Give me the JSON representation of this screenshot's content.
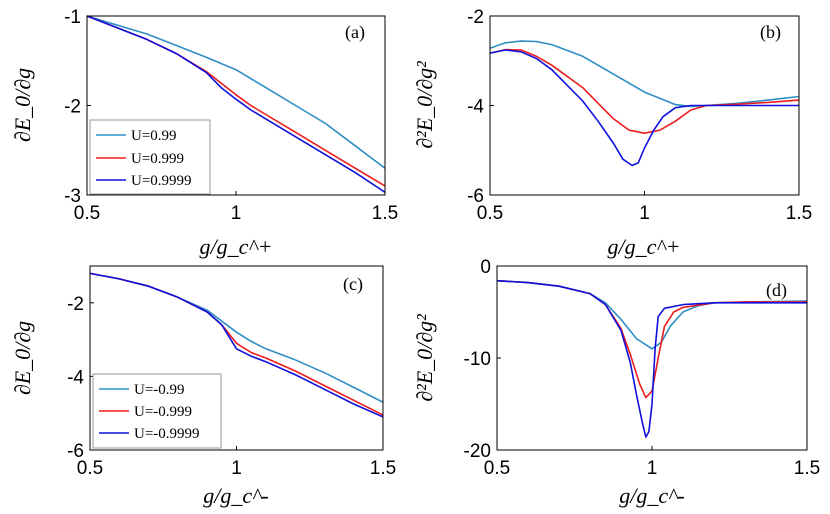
{
  "figure": {
    "colors": [
      "#2f8fc5",
      "#ee1c1c",
      "#1010dd"
    ],
    "x_labels": [
      "g/g_c^+",
      "g/g_c^+",
      "g/g_c^-",
      "g/g_c^-"
    ]
  },
  "chart_data": [
    {
      "type": "line",
      "panel_label": "(a)",
      "xlabel": "g/g_c^+",
      "ylabel": "∂E_0/∂g",
      "xlim": [
        0.5,
        1.5
      ],
      "ylim": [
        -3,
        -1
      ],
      "xticks": [
        0.5,
        1,
        1.5
      ],
      "yticks": [
        -3,
        -2,
        -1
      ],
      "xtick_labels": [
        "0.5",
        "1",
        "1.5"
      ],
      "ytick_labels": [
        "-3",
        "-2",
        "-1"
      ],
      "legend": {
        "position": "bottom-left",
        "entries": [
          "U=0.99",
          "U=0.999",
          "U=0.9999"
        ]
      },
      "series": [
        {
          "name": "U=0.99",
          "x": [
            0.5,
            0.6,
            0.7,
            0.8,
            0.9,
            1.0,
            1.1,
            1.2,
            1.3,
            1.4,
            1.5
          ],
          "y": [
            -1.0,
            -1.1,
            -1.2,
            -1.33,
            -1.46,
            -1.6,
            -1.8,
            -2.0,
            -2.2,
            -2.45,
            -2.7
          ]
        },
        {
          "name": "U=0.999",
          "x": [
            0.5,
            0.6,
            0.7,
            0.8,
            0.9,
            0.95,
            1.0,
            1.05,
            1.1,
            1.2,
            1.3,
            1.4,
            1.5
          ],
          "y": [
            -1.0,
            -1.13,
            -1.26,
            -1.42,
            -1.62,
            -1.75,
            -1.88,
            -2.0,
            -2.1,
            -2.3,
            -2.5,
            -2.7,
            -2.9
          ]
        },
        {
          "name": "U=0.9999",
          "x": [
            0.5,
            0.6,
            0.7,
            0.8,
            0.9,
            0.95,
            1.0,
            1.05,
            1.1,
            1.2,
            1.3,
            1.4,
            1.5
          ],
          "y": [
            -1.0,
            -1.13,
            -1.26,
            -1.42,
            -1.63,
            -1.8,
            -1.93,
            -2.05,
            -2.15,
            -2.35,
            -2.55,
            -2.75,
            -2.97
          ]
        }
      ]
    },
    {
      "type": "line",
      "panel_label": "(b)",
      "xlabel": "g/g_c^+",
      "ylabel": "∂²E_0/∂g²",
      "xlim": [
        0.5,
        1.5
      ],
      "ylim": [
        -6,
        -2
      ],
      "xticks": [
        0.5,
        1,
        1.5
      ],
      "yticks": [
        -6,
        -4,
        -2
      ],
      "xtick_labels": [
        "0.5",
        "1",
        "1.5"
      ],
      "ytick_labels": [
        "-6",
        "-4",
        "-2"
      ],
      "series": [
        {
          "name": "U=0.99",
          "x": [
            0.5,
            0.55,
            0.6,
            0.65,
            0.7,
            0.8,
            0.9,
            1.0,
            1.1,
            1.15,
            1.2,
            1.3,
            1.4,
            1.5
          ],
          "y": [
            -2.72,
            -2.6,
            -2.56,
            -2.57,
            -2.64,
            -2.9,
            -3.3,
            -3.7,
            -3.98,
            -4.02,
            -4.0,
            -3.95,
            -3.88,
            -3.8
          ]
        },
        {
          "name": "U=0.999",
          "x": [
            0.5,
            0.55,
            0.6,
            0.65,
            0.7,
            0.8,
            0.85,
            0.9,
            0.95,
            1.0,
            1.05,
            1.1,
            1.15,
            1.2,
            1.3,
            1.4,
            1.5
          ],
          "y": [
            -2.83,
            -2.75,
            -2.76,
            -2.9,
            -3.1,
            -3.6,
            -3.95,
            -4.3,
            -4.55,
            -4.62,
            -4.55,
            -4.35,
            -4.1,
            -4.0,
            -3.97,
            -3.93,
            -3.88
          ]
        },
        {
          "name": "U=0.9999",
          "x": [
            0.5,
            0.55,
            0.6,
            0.65,
            0.7,
            0.8,
            0.85,
            0.9,
            0.93,
            0.96,
            0.98,
            1.0,
            1.03,
            1.06,
            1.1,
            1.15,
            1.2,
            1.3,
            1.4,
            1.5
          ],
          "y": [
            -2.83,
            -2.76,
            -2.8,
            -2.95,
            -3.2,
            -3.9,
            -4.35,
            -4.85,
            -5.2,
            -5.34,
            -5.28,
            -4.95,
            -4.55,
            -4.25,
            -4.05,
            -4.0,
            -4.0,
            -4.0,
            -4.0,
            -4.0
          ]
        }
      ]
    },
    {
      "type": "line",
      "panel_label": "(c)",
      "xlabel": "g/g_c^-",
      "ylabel": "∂E_0/∂g",
      "xlim": [
        0.5,
        1.5
      ],
      "ylim": [
        -6,
        -1
      ],
      "xticks": [
        0.5,
        1,
        1.5
      ],
      "yticks": [
        -6,
        -4,
        -2
      ],
      "xtick_labels": [
        "0.5",
        "1",
        "1.5"
      ],
      "ytick_labels": [
        "-6",
        "-4",
        "-2"
      ],
      "legend": {
        "position": "bottom-left",
        "entries": [
          "U=-0.99",
          "U=-0.999",
          "U=-0.9999"
        ]
      },
      "series": [
        {
          "name": "U=-0.99",
          "x": [
            0.5,
            0.6,
            0.7,
            0.8,
            0.9,
            0.95,
            1.0,
            1.05,
            1.1,
            1.2,
            1.3,
            1.4,
            1.5
          ],
          "y": [
            -1.2,
            -1.35,
            -1.55,
            -1.85,
            -2.2,
            -2.5,
            -2.8,
            -3.05,
            -3.25,
            -3.55,
            -3.9,
            -4.3,
            -4.7
          ]
        },
        {
          "name": "U=-0.999",
          "x": [
            0.5,
            0.6,
            0.7,
            0.8,
            0.9,
            0.95,
            1.0,
            1.05,
            1.1,
            1.2,
            1.3,
            1.4,
            1.5
          ],
          "y": [
            -1.2,
            -1.35,
            -1.55,
            -1.85,
            -2.25,
            -2.6,
            -3.1,
            -3.35,
            -3.5,
            -3.85,
            -4.25,
            -4.65,
            -5.05
          ]
        },
        {
          "name": "U=-0.9999",
          "x": [
            0.5,
            0.6,
            0.7,
            0.8,
            0.9,
            0.95,
            1.0,
            1.05,
            1.1,
            1.2,
            1.3,
            1.4,
            1.5
          ],
          "y": [
            -1.2,
            -1.35,
            -1.55,
            -1.85,
            -2.25,
            -2.6,
            -3.25,
            -3.45,
            -3.6,
            -3.95,
            -4.35,
            -4.75,
            -5.1
          ]
        }
      ]
    },
    {
      "type": "line",
      "panel_label": "(d)",
      "xlabel": "g/g_c^-",
      "ylabel": "∂²E_0/∂g²",
      "xlim": [
        0.5,
        1.5
      ],
      "ylim": [
        -20,
        0
      ],
      "xticks": [
        0.5,
        1,
        1.5
      ],
      "yticks": [
        -20,
        -10,
        0
      ],
      "xtick_labels": [
        "0.5",
        "1",
        "1.5"
      ],
      "ytick_labels": [
        "-20",
        "-10",
        "0"
      ],
      "series": [
        {
          "name": "U=-0.99",
          "x": [
            0.5,
            0.6,
            0.7,
            0.8,
            0.85,
            0.9,
            0.95,
            1.0,
            1.03,
            1.06,
            1.1,
            1.15,
            1.2,
            1.3,
            1.5
          ],
          "y": [
            -1.6,
            -1.8,
            -2.2,
            -3.0,
            -4.0,
            -5.8,
            -7.9,
            -9.0,
            -8.3,
            -6.5,
            -5.0,
            -4.3,
            -4.0,
            -3.9,
            -3.8
          ]
        },
        {
          "name": "U=-0.999",
          "x": [
            0.5,
            0.6,
            0.7,
            0.8,
            0.85,
            0.9,
            0.93,
            0.96,
            0.98,
            1.0,
            1.02,
            1.04,
            1.07,
            1.1,
            1.2,
            1.3,
            1.5
          ],
          "y": [
            -1.6,
            -1.8,
            -2.2,
            -3.0,
            -4.2,
            -6.8,
            -9.6,
            -12.8,
            -14.3,
            -13.6,
            -10.0,
            -6.6,
            -5.0,
            -4.5,
            -4.0,
            -3.9,
            -3.9
          ]
        },
        {
          "name": "U=-0.9999",
          "x": [
            0.5,
            0.6,
            0.7,
            0.8,
            0.85,
            0.9,
            0.93,
            0.95,
            0.97,
            0.98,
            0.99,
            1.0,
            1.01,
            1.02,
            1.04,
            1.1,
            1.2,
            1.3,
            1.5
          ],
          "y": [
            -1.6,
            -1.8,
            -2.2,
            -3.0,
            -4.2,
            -7.0,
            -10.5,
            -14.0,
            -17.2,
            -18.6,
            -18.0,
            -15.0,
            -9.0,
            -5.5,
            -4.6,
            -4.2,
            -4.0,
            -4.0,
            -4.0
          ]
        }
      ]
    }
  ]
}
